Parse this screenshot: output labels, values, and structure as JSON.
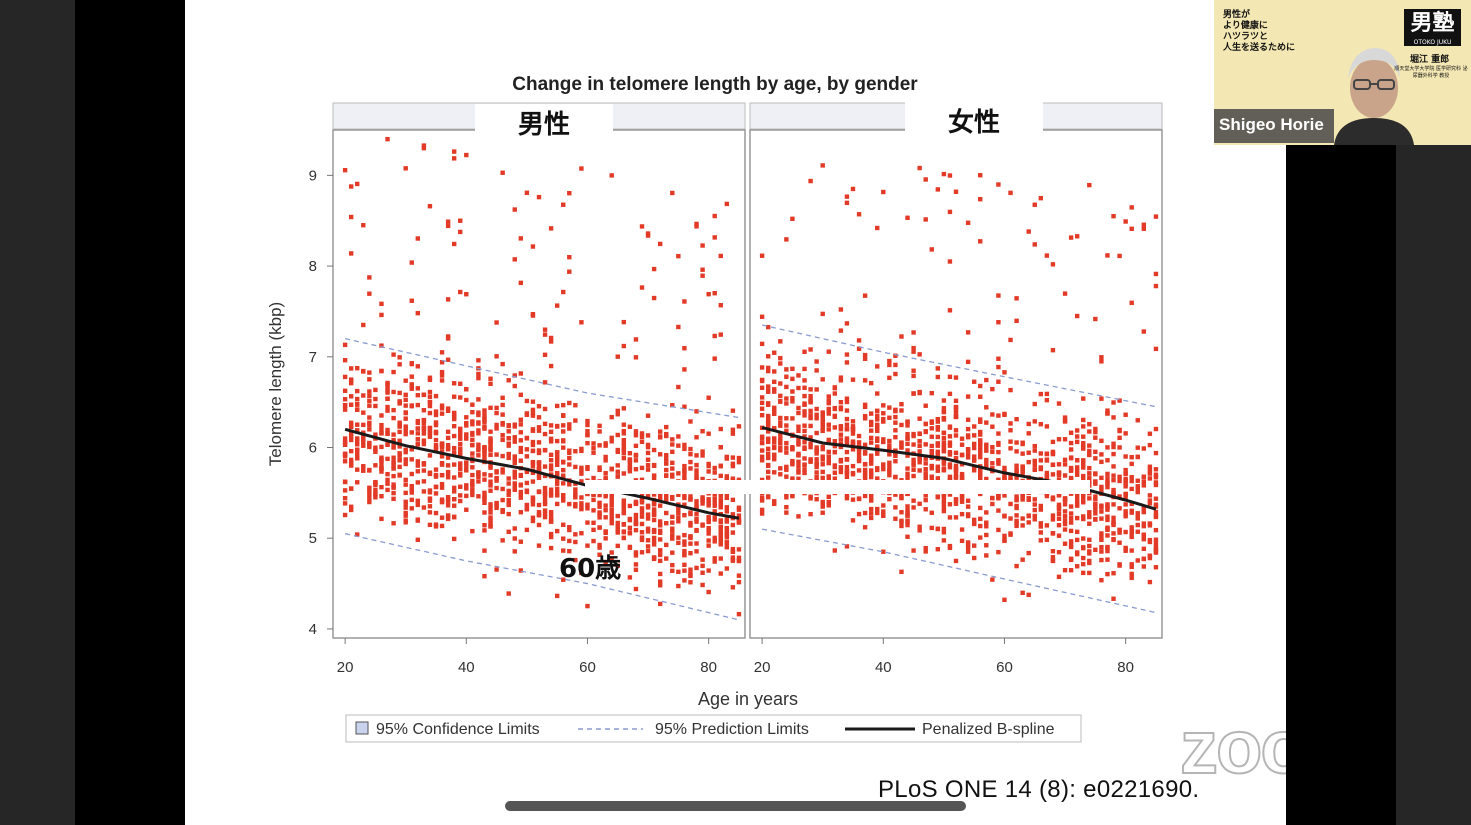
{
  "chart_data": {
    "type": "scatter",
    "title": "Change in telomere length by age, by gender",
    "xlabel": "Age in years",
    "ylabel": "Telomere length (kbp)",
    "xlim": [
      18,
      86
    ],
    "ylim": [
      3.9,
      9.5
    ],
    "x_ticks": [
      20,
      40,
      60,
      80
    ],
    "y_ticks": [
      4,
      5,
      6,
      7,
      8,
      9
    ],
    "panels": [
      {
        "name": "男性",
        "spline": {
          "x": [
            20,
            30,
            40,
            50,
            60,
            70,
            80,
            85
          ],
          "y": [
            6.2,
            6.02,
            5.88,
            5.76,
            5.58,
            5.44,
            5.28,
            5.22
          ]
        },
        "prediction_upper": {
          "x": [
            20,
            40,
            60,
            85
          ],
          "y": [
            7.2,
            6.9,
            6.6,
            6.33
          ]
        },
        "prediction_lower": {
          "x": [
            20,
            40,
            60,
            85
          ],
          "y": [
            5.05,
            4.75,
            4.5,
            4.1
          ]
        },
        "point_band": {
          "center_start": 6.2,
          "center_end": 5.22,
          "spread": 0.85
        }
      },
      {
        "name": "女性",
        "spline": {
          "x": [
            20,
            30,
            40,
            50,
            60,
            70,
            80,
            85
          ],
          "y": [
            6.22,
            6.05,
            5.97,
            5.88,
            5.72,
            5.6,
            5.42,
            5.32
          ]
        },
        "prediction_upper": {
          "x": [
            20,
            40,
            60,
            85
          ],
          "y": [
            7.35,
            7.05,
            6.78,
            6.45
          ]
        },
        "prediction_lower": {
          "x": [
            20,
            40,
            60,
            85
          ],
          "y": [
            5.1,
            4.85,
            4.55,
            4.18
          ]
        },
        "point_band": {
          "center_start": 6.22,
          "center_end": 5.32,
          "spread": 0.85
        }
      }
    ],
    "legend": [
      {
        "label": "95% Confidence Limits",
        "style": "box"
      },
      {
        "label": "95% Prediction Limits",
        "style": "dashed"
      },
      {
        "label": "Penalized B-spline",
        "style": "solid"
      }
    ],
    "colors": {
      "points": "#e23a26",
      "spline": "#1a1a1a",
      "prediction": "#8b9bd0",
      "confidence": "#c9d3ee"
    }
  },
  "annotations": {
    "male_label": "男性",
    "female_label": "女性",
    "age_marker": "60歳"
  },
  "citation": "PLoS ONE 14 (8): e0221690.",
  "zoom_watermark": "zoom",
  "participant": {
    "name": "Shigeo Horie",
    "banner_text": "男性が\nより健康に\nハツラツと\n人生を送るために",
    "logo": "男塾",
    "logo_sub": "OTOKO JUKU",
    "display_name_jp": "堀江 重郎",
    "affiliation": "順天堂大学大学院 医学研究科 泌尿器外科学 教授"
  }
}
